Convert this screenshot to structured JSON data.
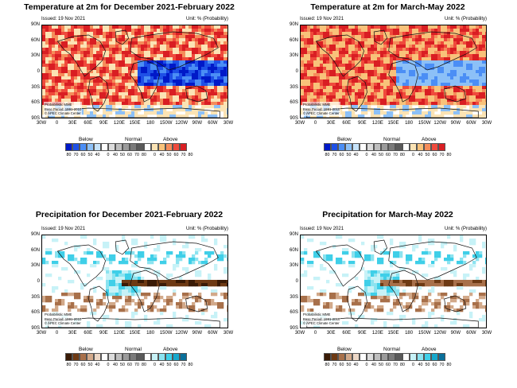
{
  "common": {
    "issued": "Issued: 19 Nov 2021",
    "unit": "Unit: % (Probability)",
    "note_lines": [
      "Probabilistic MME",
      "Base Period: 1991-2010",
      "© APEC Climate Center"
    ],
    "lat_ticks": [
      "90N",
      "60N",
      "30N",
      "0",
      "30S",
      "60S",
      "90S"
    ],
    "lon_ticks": [
      "30W",
      "0",
      "30E",
      "60E",
      "90E",
      "120E",
      "150E",
      "180",
      "150W",
      "120W",
      "90W",
      "60W",
      "30W"
    ],
    "legend_categories": [
      "Below",
      "Normal",
      "Above"
    ],
    "legend_labels": [
      "80",
      "70",
      "60",
      "50",
      "40",
      "0",
      "40",
      "50",
      "60",
      "70",
      "80",
      "0",
      "40",
      "50",
      "60",
      "70",
      "80"
    ]
  },
  "panels": [
    {
      "title": "Temperature at 2m for December 2021-February 2022",
      "variable": "temperature",
      "season": "Dec-Feb",
      "below_colors": [
        "#0019c8",
        "#1e50e6",
        "#4b8ef5",
        "#8cc0f7",
        "#c5e2fa"
      ],
      "normal_colors": [
        "#ffffff",
        "#dcdcdc",
        "#bebebe",
        "#9a9a9a",
        "#7a7a7a",
        "#5a5a5a"
      ],
      "above_colors": [
        "#ffffff",
        "#fbe3b4",
        "#f8c27a",
        "#f58c5a",
        "#ef4a3c",
        "#d91e23"
      ]
    },
    {
      "title": "Temperature at 2m for March-May 2022",
      "variable": "temperature",
      "season": "Mar-May",
      "below_colors": [
        "#0019c8",
        "#1e50e6",
        "#4b8ef5",
        "#8cc0f7",
        "#c5e2fa"
      ],
      "normal_colors": [
        "#ffffff",
        "#dcdcdc",
        "#bebebe",
        "#9a9a9a",
        "#7a7a7a",
        "#5a5a5a"
      ],
      "above_colors": [
        "#ffffff",
        "#fbe3b4",
        "#f8c27a",
        "#f58c5a",
        "#ef4a3c",
        "#d91e23"
      ]
    },
    {
      "title": "Precipitation for December 2021-February 2022",
      "variable": "precipitation",
      "season": "Dec-Feb",
      "below_colors": [
        "#3a1b06",
        "#6e3a14",
        "#a8704a",
        "#d2a98a",
        "#ecd7c6"
      ],
      "normal_colors": [
        "#ffffff",
        "#dcdcdc",
        "#bebebe",
        "#9a9a9a",
        "#7a7a7a",
        "#5a5a5a"
      ],
      "above_colors": [
        "#ffffff",
        "#c7f2f7",
        "#8be3f0",
        "#3fcfe8",
        "#16a8cc",
        "#0a6f9a"
      ]
    },
    {
      "title": "Precipitation for March-May 2022",
      "variable": "precipitation",
      "season": "Mar-May",
      "below_colors": [
        "#3a1b06",
        "#6e3a14",
        "#a8704a",
        "#d2a98a",
        "#ecd7c6"
      ],
      "normal_colors": [
        "#ffffff",
        "#dcdcdc",
        "#bebebe",
        "#9a9a9a",
        "#7a7a7a",
        "#5a5a5a"
      ],
      "above_colors": [
        "#ffffff",
        "#c7f2f7",
        "#8be3f0",
        "#3fcfe8",
        "#16a8cc",
        "#0a6f9a"
      ]
    }
  ]
}
